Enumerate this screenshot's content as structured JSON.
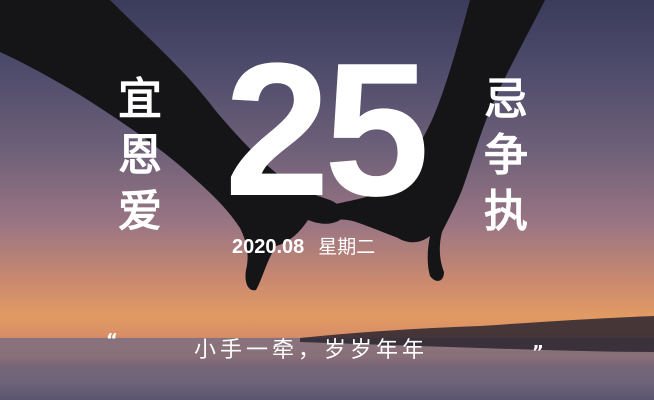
{
  "calendar": {
    "day": "25",
    "date": "2020.08",
    "weekday": "星期二",
    "yi_label": [
      "宜",
      "恩",
      "爱"
    ],
    "ji_label": [
      "忌",
      "争",
      "执"
    ]
  },
  "quote": {
    "open_mark": "“",
    "text": "小手一牵，岁岁年年",
    "close_mark": "”"
  },
  "colors": {
    "sky_top": "#3b3b5c",
    "sunset_orange": "#e29a63",
    "text": "#ffffff",
    "silhouette": "#151417"
  }
}
